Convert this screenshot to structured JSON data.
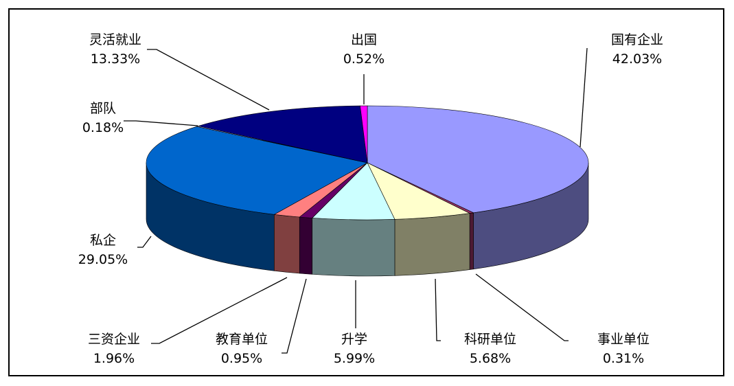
{
  "chart_data": {
    "type": "pie",
    "title": "",
    "series": [
      {
        "values": [
          42.03,
          0.31,
          5.68,
          5.99,
          0.95,
          1.96,
          29.05,
          0.18,
          13.33,
          0.52
        ],
        "labels": [
          "国有企业",
          "事业单位",
          "科研单位",
          "升学",
          "教育单位",
          "三资企业",
          "私企",
          "部队",
          "灵活就业",
          "出国"
        ],
        "value_labels": [
          "42.03%",
          "0.31%",
          "5.68%",
          "5.99%",
          "0.95%",
          "1.96%",
          "29.05%",
          "0.18%",
          "13.33%",
          "0.52%"
        ],
        "colors": [
          "#9999FF",
          "#993366",
          "#FFFFCC",
          "#CCFFFF",
          "#660066",
          "#FF8080",
          "#0066CC",
          "#CCCCFF",
          "#000080",
          "#FF00FF"
        ]
      }
    ],
    "legend": "none",
    "style": "3d-pie"
  }
}
